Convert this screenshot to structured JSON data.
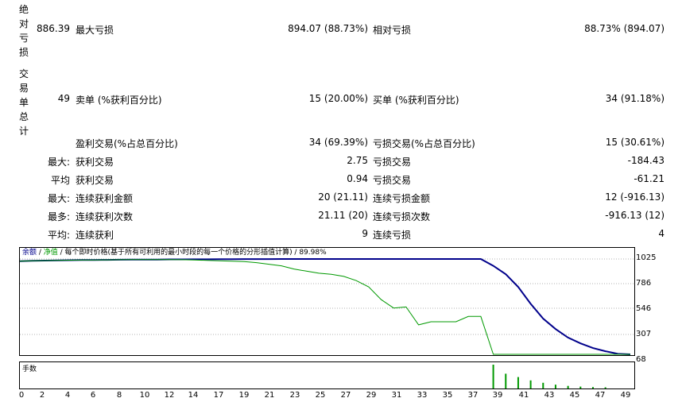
{
  "report": {
    "row_drawdown": {
      "section_label": "绝对亏损",
      "section_value": "886.39",
      "label_a": "最大亏损",
      "value_a": "894.07 (88.73%)",
      "label_b": "相对亏损",
      "value_b": "88.73% (894.07)"
    },
    "row_trades": {
      "section_label": "交易单总计",
      "section_value": "49",
      "label_a": "卖单 (%获利百分比)",
      "value_a": "15 (20.00%)",
      "label_b": "买单 (%获利百分比)",
      "value_b": "34 (91.18%)"
    },
    "row_profit_trades": {
      "label_a": "盈利交易(%占总百分比)",
      "value_a": "34 (69.39%)",
      "label_b": "亏损交易(%占总百分比)",
      "value_b": "15 (30.61%)"
    },
    "row_largest": {
      "prefix": "最大:",
      "label_a": "获利交易",
      "value_a": "2.75",
      "label_b": "亏损交易",
      "value_b": "-184.43"
    },
    "row_average": {
      "prefix": "平均",
      "label_a": "获利交易",
      "value_a": "0.94",
      "label_b": "亏损交易",
      "value_b": "-61.21"
    },
    "row_max_consec_amount": {
      "prefix": "最大:",
      "label_a": "连续获利金额",
      "value_a": "20 (21.11)",
      "label_b": "连续亏损金额",
      "value_b": "12 (-916.13)"
    },
    "row_max_consec_count": {
      "prefix": "最多:",
      "label_a": "连续获利次数",
      "value_a": "21.11 (20)",
      "label_b": "连续亏损次数",
      "value_b": "-916.13 (12)"
    },
    "row_avg_consec": {
      "prefix": "平均:",
      "label_a": "连续获利",
      "value_a": "9",
      "label_b": "连续亏损",
      "value_b": "4"
    }
  },
  "chart": {
    "legend_balance": "余额",
    "legend_sep1": " / ",
    "legend_equity": "净值",
    "legend_rest": " / 每个即时价格(基于所有可利用的最小时段的每一个价格的分形插值计算) / 89.98%",
    "volume_label": "手数",
    "colors": {
      "balance": "#00008b",
      "equity": "#009900",
      "volume": "#009900",
      "grid": "#b0b0b0"
    }
  },
  "chart_data": {
    "type": "line",
    "x": [
      0,
      1,
      2,
      3,
      4,
      5,
      6,
      7,
      8,
      9,
      10,
      11,
      12,
      13,
      14,
      15,
      16,
      17,
      18,
      19,
      20,
      21,
      22,
      23,
      24,
      25,
      26,
      27,
      28,
      29,
      30,
      31,
      32,
      33,
      34,
      35,
      36,
      37,
      38,
      39,
      40,
      41,
      42,
      43,
      44,
      45,
      46,
      47,
      48,
      49
    ],
    "series": [
      {
        "name": "余额",
        "values": [
          1005,
          1008,
          1010,
          1012,
          1014,
          1015,
          1016,
          1017,
          1018,
          1019,
          1019,
          1020,
          1021,
          1021,
          1022,
          1022,
          1023,
          1023,
          1024,
          1024,
          1024,
          1025,
          1025,
          1025,
          1025,
          1025,
          1025,
          1025,
          1025,
          1025,
          1025,
          1025,
          1025,
          1025,
          1025,
          1025,
          1025,
          1025,
          960,
          880,
          760,
          600,
          460,
          360,
          280,
          225,
          180,
          150,
          125,
          110
        ]
      },
      {
        "name": "净值",
        "values": [
          1005,
          1008,
          1010,
          1012,
          1014,
          1015,
          1016,
          1017,
          1018,
          1019,
          1019,
          1020,
          1020,
          1018,
          1015,
          1012,
          1008,
          1004,
          1000,
          990,
          975,
          960,
          930,
          910,
          890,
          880,
          860,
          820,
          760,
          640,
          560,
          570,
          400,
          430,
          430,
          430,
          480,
          480,
          110,
          110,
          110,
          110,
          110,
          110,
          110,
          110,
          110,
          110,
          110,
          110
        ]
      }
    ],
    "y_ticks": [
      "1025",
      "786",
      "546",
      "307",
      "68"
    ],
    "x_ticks": [
      "0",
      "2",
      "4",
      "6",
      "8",
      "10",
      "12",
      "14",
      "17",
      "19",
      "21",
      "23",
      "25",
      "27",
      "29",
      "31",
      "33",
      "35",
      "37",
      "39",
      "41",
      "43",
      "45",
      "47",
      "49"
    ],
    "ylim": [
      68,
      1025
    ],
    "volume": {
      "x": [
        38,
        39,
        40,
        41,
        42,
        43,
        44,
        45,
        46,
        47
      ],
      "values": [
        1.0,
        0.62,
        0.48,
        0.34,
        0.24,
        0.16,
        0.11,
        0.08,
        0.06,
        0.05
      ]
    }
  }
}
